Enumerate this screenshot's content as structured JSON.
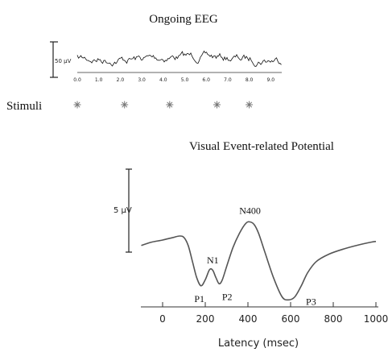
{
  "eeg": {
    "title": "Ongoing EEG",
    "scale_label": "50 μV",
    "x_ticks": [
      "0.0",
      "1.0",
      "2.0",
      "3.0",
      "4.0",
      "5.0",
      "6.0",
      "7.0",
      "8.0",
      "9.0"
    ],
    "stimuli_label": "Stimuli",
    "stimulus_times": [
      0.0,
      2.2,
      4.3,
      6.5,
      8.0
    ]
  },
  "erp": {
    "title": "Visual Event-related Potential",
    "scale_label": "5 μV",
    "xlabel": "Latency (msec)",
    "x_ticks": [
      "0",
      "200",
      "400",
      "600",
      "800",
      "1000"
    ],
    "peaks": [
      {
        "label": "P1",
        "latency_ms": 180
      },
      {
        "label": "N1",
        "latency_ms": 225
      },
      {
        "label": "P2",
        "latency_ms": 265
      },
      {
        "label": "N400",
        "latency_ms": 410
      },
      {
        "label": "P3",
        "latency_ms": 590
      }
    ]
  },
  "chart_data": {
    "type": "line",
    "title": "Visual Event-related Potential",
    "xlabel": "Latency (msec)",
    "ylabel": "",
    "xlim": [
      -100,
      1000
    ],
    "y_direction": "negative up",
    "series": [
      {
        "x": [
          -100,
          -50,
          0,
          50,
          80,
          100,
          120,
          140,
          160,
          180,
          200,
          220,
          235,
          250,
          265,
          280,
          300,
          330,
          360,
          390,
          410,
          430,
          450,
          480,
          520,
          560,
          590,
          620,
          650,
          680,
          720,
          780,
          850,
          920,
          980,
          1000
        ],
        "y": [
          0.45,
          0.62,
          0.72,
          0.85,
          0.92,
          0.85,
          0.45,
          -0.35,
          -1.15,
          -1.55,
          -1.25,
          -0.75,
          -0.78,
          -1.15,
          -1.45,
          -1.25,
          -0.6,
          0.35,
          1.05,
          1.55,
          1.62,
          1.48,
          1.05,
          0.1,
          -1.15,
          -2.1,
          -2.25,
          -2.1,
          -1.55,
          -0.9,
          -0.35,
          0.02,
          0.28,
          0.48,
          0.62,
          0.65
        ]
      }
    ]
  }
}
